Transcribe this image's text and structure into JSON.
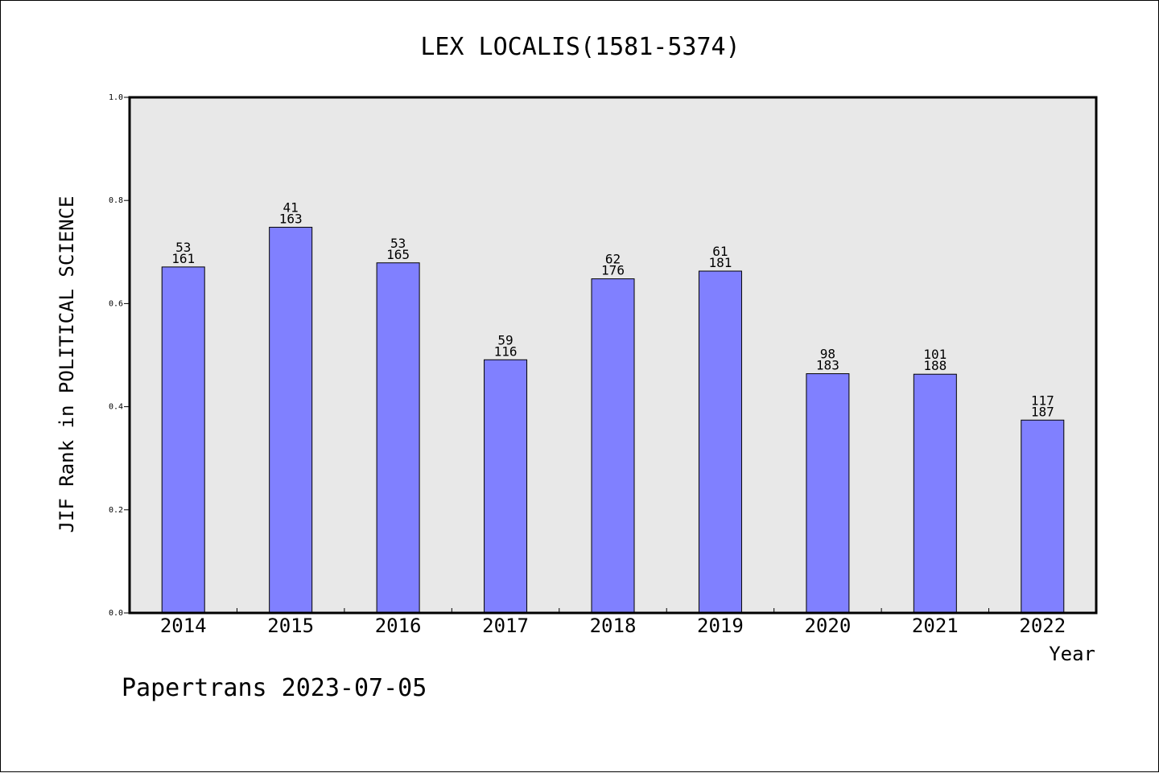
{
  "chart_data": {
    "type": "bar",
    "title": "LEX LOCALIS(1581-5374)",
    "xlabel": "Year",
    "ylabel": "JIF Rank in POLITICAL SCIENCE",
    "ylim": [
      0,
      1.0
    ],
    "yticks": [
      "0.0",
      "0.2",
      "0.4",
      "0.6",
      "0.8",
      "1.0"
    ],
    "grid": false,
    "colors": {
      "bar": "#8080ff",
      "plot_bg": "#e8e8e8"
    },
    "categories": [
      "2014",
      "2015",
      "2016",
      "2017",
      "2018",
      "2019",
      "2020",
      "2021",
      "2022"
    ],
    "values": [
      0.671,
      0.748,
      0.679,
      0.491,
      0.648,
      0.663,
      0.464,
      0.463,
      0.374
    ],
    "labels": [
      {
        "rank": "53",
        "total": "161"
      },
      {
        "rank": "41",
        "total": "163"
      },
      {
        "rank": "53",
        "total": "165"
      },
      {
        "rank": "59",
        "total": "116"
      },
      {
        "rank": "62",
        "total": "176"
      },
      {
        "rank": "61",
        "total": "181"
      },
      {
        "rank": "98",
        "total": "183"
      },
      {
        "rank": "101",
        "total": "188"
      },
      {
        "rank": "117",
        "total": "187"
      }
    ]
  },
  "footer": "Papertrans 2023-07-05"
}
